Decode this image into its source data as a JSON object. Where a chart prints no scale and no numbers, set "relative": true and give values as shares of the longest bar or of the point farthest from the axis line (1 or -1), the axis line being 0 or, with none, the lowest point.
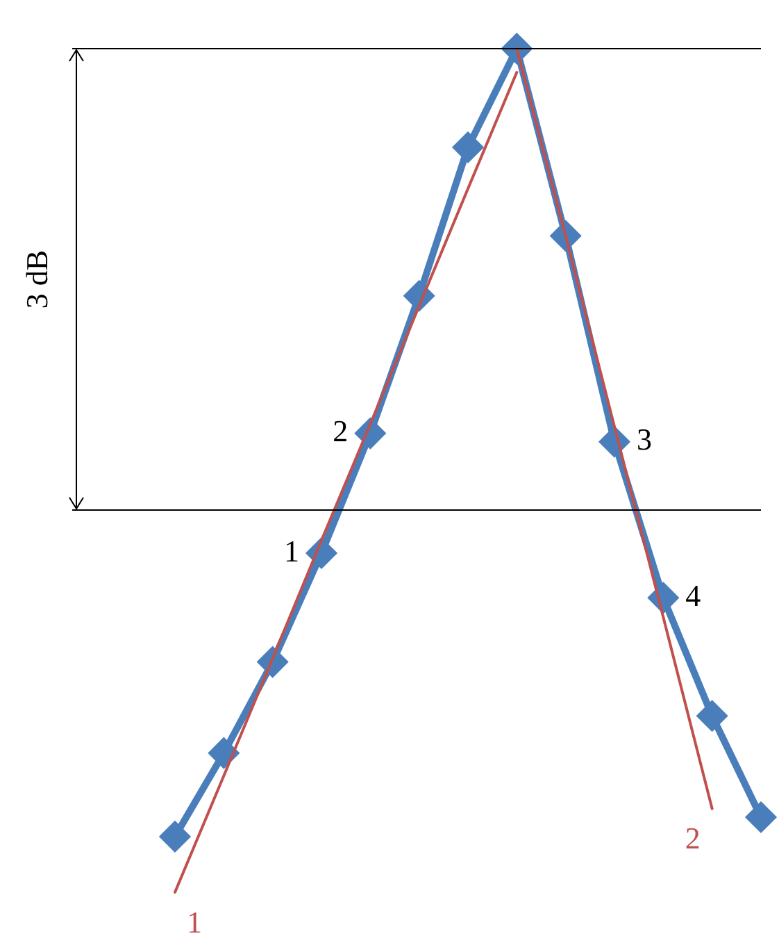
{
  "chart_data": {
    "type": "line",
    "relative": true,
    "categories": [
      null,
      null,
      null,
      null,
      null,
      null,
      null,
      null,
      null,
      null,
      null,
      null,
      null
    ],
    "series": [
      {
        "color": "#4a7ebb",
        "marker": "diamond",
        "values": [
          0.066,
          0.165,
          0.273,
          0.402,
          0.544,
          0.707,
          0.883,
          1,
          0.778,
          0.534,
          0.349,
          0.209,
          0.089
        ]
      },
      {
        "name": "1",
        "color": "#c0504d",
        "marker": "none",
        "values": [
          0,
          0.138,
          0.277,
          0.417,
          0.555,
          0.695,
          0.834,
          0.972,
          null,
          null,
          null,
          null,
          null
        ]
      },
      {
        "name": "2",
        "color": "#c0504d",
        "marker": "none",
        "values": [
          null,
          null,
          null,
          null,
          null,
          null,
          null,
          1,
          0.778,
          0.552,
          0.326,
          0.099,
          null
        ]
      }
    ],
    "ref_lines": [
      {
        "axis": "y",
        "value": 1,
        "color": "#000000"
      },
      {
        "axis": "y",
        "value": 0.453,
        "color": "#000000"
      }
    ],
    "annotations": [
      "3 dB",
      "1",
      "2",
      "3",
      "4"
    ],
    "legend": false,
    "tick_labels": false
  }
}
